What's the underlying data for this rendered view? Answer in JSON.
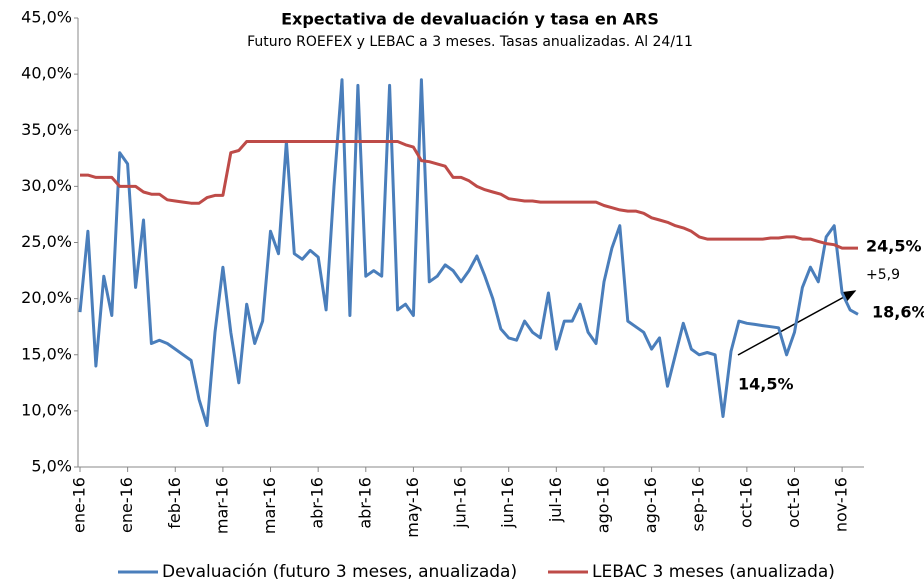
{
  "chart_data": {
    "type": "line",
    "title": "Expectativa de devaluación y tasa en ARS",
    "subtitle": "Futuro ROEFEX y LEBAC a 3 meses. Tasas anualizadas. Al 24/11",
    "categories": [
      "ene-16",
      null,
      null,
      null,
      null,
      null,
      "ene-16",
      null,
      null,
      null,
      null,
      null,
      "feb-16",
      null,
      null,
      null,
      null,
      null,
      "mar-16",
      null,
      null,
      null,
      null,
      null,
      "mar-16",
      null,
      null,
      null,
      null,
      null,
      "abr-16",
      null,
      null,
      null,
      null,
      null,
      "abr-16",
      null,
      null,
      null,
      null,
      null,
      "may-16",
      null,
      null,
      null,
      null,
      null,
      "jun-16",
      null,
      null,
      null,
      null,
      null,
      "jun-16",
      null,
      null,
      null,
      null,
      null,
      "jul-16",
      null,
      null,
      null,
      null,
      null,
      "ago-16",
      null,
      null,
      null,
      null,
      null,
      "ago-16",
      null,
      null,
      null,
      null,
      null,
      "sep-16",
      null,
      null,
      null,
      null,
      null,
      "oct-16",
      null,
      null,
      null,
      null,
      null,
      "oct-16",
      null,
      null,
      null,
      null,
      null,
      "nov-16",
      null,
      null
    ],
    "series": [
      {
        "name": "Devaluación (futuro 3 meses, anualizada)",
        "color": "#4a7ebb",
        "values": [
          18.8,
          26,
          14,
          22,
          18.5,
          33,
          32,
          21,
          27,
          16,
          16.3,
          16,
          15.5,
          15,
          14.5,
          11,
          8.7,
          17,
          22.8,
          17,
          12.5,
          19.5,
          16,
          18,
          26,
          24,
          34,
          24,
          23.5,
          24.3,
          23.7,
          19,
          30,
          39.5,
          18.5,
          39,
          22,
          22.5,
          22,
          39,
          19,
          19.5,
          18.5,
          39.5,
          21.5,
          22,
          23,
          22.5,
          21.5,
          22.5,
          23.8,
          22,
          20,
          17.3,
          16.5,
          16.3,
          18,
          17,
          16.5,
          20.5,
          15.5,
          18,
          18,
          19.5,
          17,
          16,
          21.5,
          24.5,
          26.5,
          18,
          17.5,
          17,
          15.5,
          16.5,
          12.2,
          15,
          17.8,
          15.5,
          15,
          15.2,
          15,
          9.5,
          15.3,
          18,
          17.8,
          17.7,
          17.6,
          17.5,
          17.4,
          15,
          17,
          21,
          22.8,
          21.5,
          25.5,
          26.5,
          20.5,
          19,
          18.6
        ]
      },
      {
        "name": "LEBAC 3 meses (anualizada)",
        "color": "#be4b48",
        "values": [
          31,
          31,
          30.8,
          30.8,
          30.8,
          30,
          30,
          30,
          29.5,
          29.3,
          29.3,
          28.8,
          28.7,
          28.6,
          28.5,
          28.5,
          29,
          29.2,
          29.2,
          33,
          33.2,
          34,
          34,
          34,
          34,
          34,
          34,
          34,
          34,
          34,
          34,
          34,
          34,
          34,
          34,
          34,
          34,
          34,
          34,
          34,
          34,
          33.7,
          33.5,
          32.3,
          32.2,
          32,
          31.8,
          30.8,
          30.8,
          30.5,
          30,
          29.7,
          29.5,
          29.3,
          28.9,
          28.8,
          28.7,
          28.7,
          28.6,
          28.6,
          28.6,
          28.6,
          28.6,
          28.6,
          28.6,
          28.6,
          28.3,
          28.1,
          27.9,
          27.8,
          27.8,
          27.6,
          27.2,
          27,
          26.8,
          26.5,
          26.3,
          26,
          25.5,
          25.3,
          25.3,
          25.3,
          25.3,
          25.3,
          25.3,
          25.3,
          25.3,
          25.4,
          25.4,
          25.5,
          25.5,
          25.3,
          25.3,
          25.1,
          24.9,
          24.8,
          24.5,
          24.5,
          24.5
        ]
      }
    ],
    "ylim": [
      5,
      45
    ],
    "yticks": [
      {
        "value": 5,
        "label": "5,0%"
      },
      {
        "value": 10,
        "label": "10,0%"
      },
      {
        "value": 15,
        "label": "15,0%"
      },
      {
        "value": 20,
        "label": "20,0%"
      },
      {
        "value": 25,
        "label": "25,0%"
      },
      {
        "value": 30,
        "label": "30,0%"
      },
      {
        "value": 35,
        "label": "35,0%"
      },
      {
        "value": 40,
        "label": "40,0%"
      },
      {
        "value": 45,
        "label": "45,0%"
      }
    ],
    "grid": false,
    "annotations": [
      "24,5%",
      "+5,9",
      "18,6%",
      "14,5%"
    ]
  }
}
